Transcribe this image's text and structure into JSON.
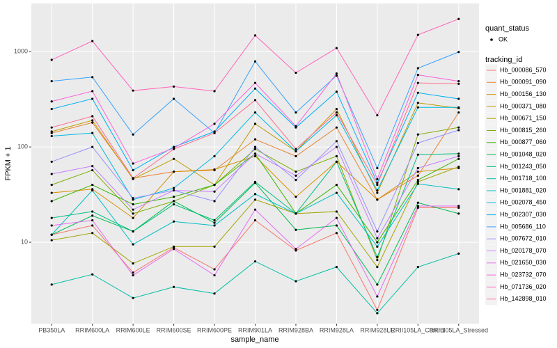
{
  "chart_data": {
    "type": "line",
    "log_scale": true,
    "grid": true,
    "xlabel": "sample_name",
    "ylabel": "FPKM + 1",
    "categories": [
      "PB350LA",
      "RRIM600LA",
      "RRIM600LE",
      "RRIM600SE",
      "RRIM600PE",
      "RRIM901LA",
      "RRIM928BA",
      "RRIM928LA",
      "RRIM928LE",
      "RRII105LA_Control",
      "RRII105LA_Stressed"
    ],
    "ylim": [
      1.4,
      3200
    ],
    "yticks": [
      10,
      100,
      1000
    ],
    "shape_legend": {
      "title": "quant_status",
      "labels": [
        "OK"
      ]
    },
    "legend_title": "tracking_id",
    "series": [
      {
        "name": "Hb_000086_570",
        "color": "#F8766D",
        "values": [
          12,
          15,
          4.8,
          8.8,
          5.2,
          17,
          8.2,
          12.5,
          1.95,
          23,
          23
        ]
      },
      {
        "name": "Hb_000091_090",
        "color": "#EA8331",
        "values": [
          140,
          180,
          47,
          55,
          57,
          120,
          80,
          160,
          28,
          50,
          230
        ]
      },
      {
        "name": "Hb_000156_130",
        "color": "#D89000",
        "values": [
          33,
          36,
          18,
          55,
          58,
          80,
          30,
          70,
          28,
          55,
          60
        ]
      },
      {
        "name": "Hb_000371_080",
        "color": "#C09B00",
        "values": [
          145,
          190,
          46,
          75,
          40,
          175,
          90,
          250,
          33,
          290,
          255
        ]
      },
      {
        "name": "Hb_000671_150",
        "color": "#A3A500",
        "values": [
          10.5,
          12.5,
          6,
          9,
          9,
          28,
          20,
          21,
          5.5,
          43,
          62
        ]
      },
      {
        "name": "Hb_000815_260",
        "color": "#7CAE00",
        "values": [
          40,
          57,
          20,
          27,
          40,
          95,
          55,
          80,
          6.5,
          135,
          160
        ]
      },
      {
        "name": "Hb_000877_060",
        "color": "#39B600",
        "values": [
          27,
          40,
          25,
          30,
          40,
          85,
          20,
          40,
          10,
          45,
          75
        ]
      },
      {
        "name": "Hb_001048_020",
        "color": "#00BB4E",
        "values": [
          12,
          19,
          13,
          27,
          16,
          42,
          13.5,
          15,
          3.6,
          26,
          20
        ]
      },
      {
        "name": "Hb_001243_050",
        "color": "#00BF7D",
        "values": [
          18,
          21,
          13,
          25,
          17,
          43,
          20,
          70,
          7,
          83,
          85
        ]
      },
      {
        "name": "Hb_001718_100",
        "color": "#00C1A3",
        "values": [
          3.6,
          4.6,
          2.6,
          3.4,
          2.9,
          6.3,
          3.9,
          5.5,
          1.8,
          5.5,
          7.6
        ]
      },
      {
        "name": "Hb_001881_020",
        "color": "#00BFC4",
        "values": [
          12,
          35,
          9.5,
          16.5,
          15,
          32,
          20,
          33,
          9,
          41,
          36
        ]
      },
      {
        "name": "Hb_002078_450",
        "color": "#00BAE0",
        "values": [
          130,
          140,
          28,
          37,
          80,
          230,
          90,
          215,
          35,
          260,
          260
        ]
      },
      {
        "name": "Hb_002307_030",
        "color": "#00B0F6",
        "values": [
          250,
          320,
          57,
          100,
          145,
          410,
          160,
          380,
          42,
          370,
          320
        ]
      },
      {
        "name": "Hb_005686_110",
        "color": "#35A2FF",
        "values": [
          490,
          540,
          135,
          320,
          140,
          790,
          230,
          560,
          60,
          670,
          990
        ]
      },
      {
        "name": "Hb_007672_010",
        "color": "#9590FF",
        "values": [
          70,
          100,
          29,
          35,
          27,
          100,
          45,
          115,
          13,
          110,
          150
        ]
      },
      {
        "name": "Hb_020178_070",
        "color": "#C77CFF",
        "values": [
          52,
          63,
          22,
          35,
          34,
          85,
          50,
          100,
          11,
          60,
          80
        ]
      },
      {
        "name": "Hb_021650_030",
        "color": "#E76BF3",
        "values": [
          15,
          17,
          4.5,
          8.5,
          4.5,
          22,
          8.5,
          18,
          2.7,
          24,
          24
        ]
      },
      {
        "name": "Hb_023732_070",
        "color": "#FA62DB",
        "values": [
          300,
          385,
          67,
          97,
          175,
          470,
          165,
          590,
          46,
          570,
          490
        ]
      },
      {
        "name": "Hb_071736_020",
        "color": "#FF62BC",
        "values": [
          820,
          1290,
          390,
          430,
          385,
          1480,
          600,
          1090,
          215,
          1500,
          2200
        ]
      },
      {
        "name": "Hb_142898_010",
        "color": "#FF6C91",
        "values": [
          160,
          210,
          47,
          95,
          140,
          310,
          95,
          230,
          40,
          470,
          460
        ]
      }
    ]
  }
}
